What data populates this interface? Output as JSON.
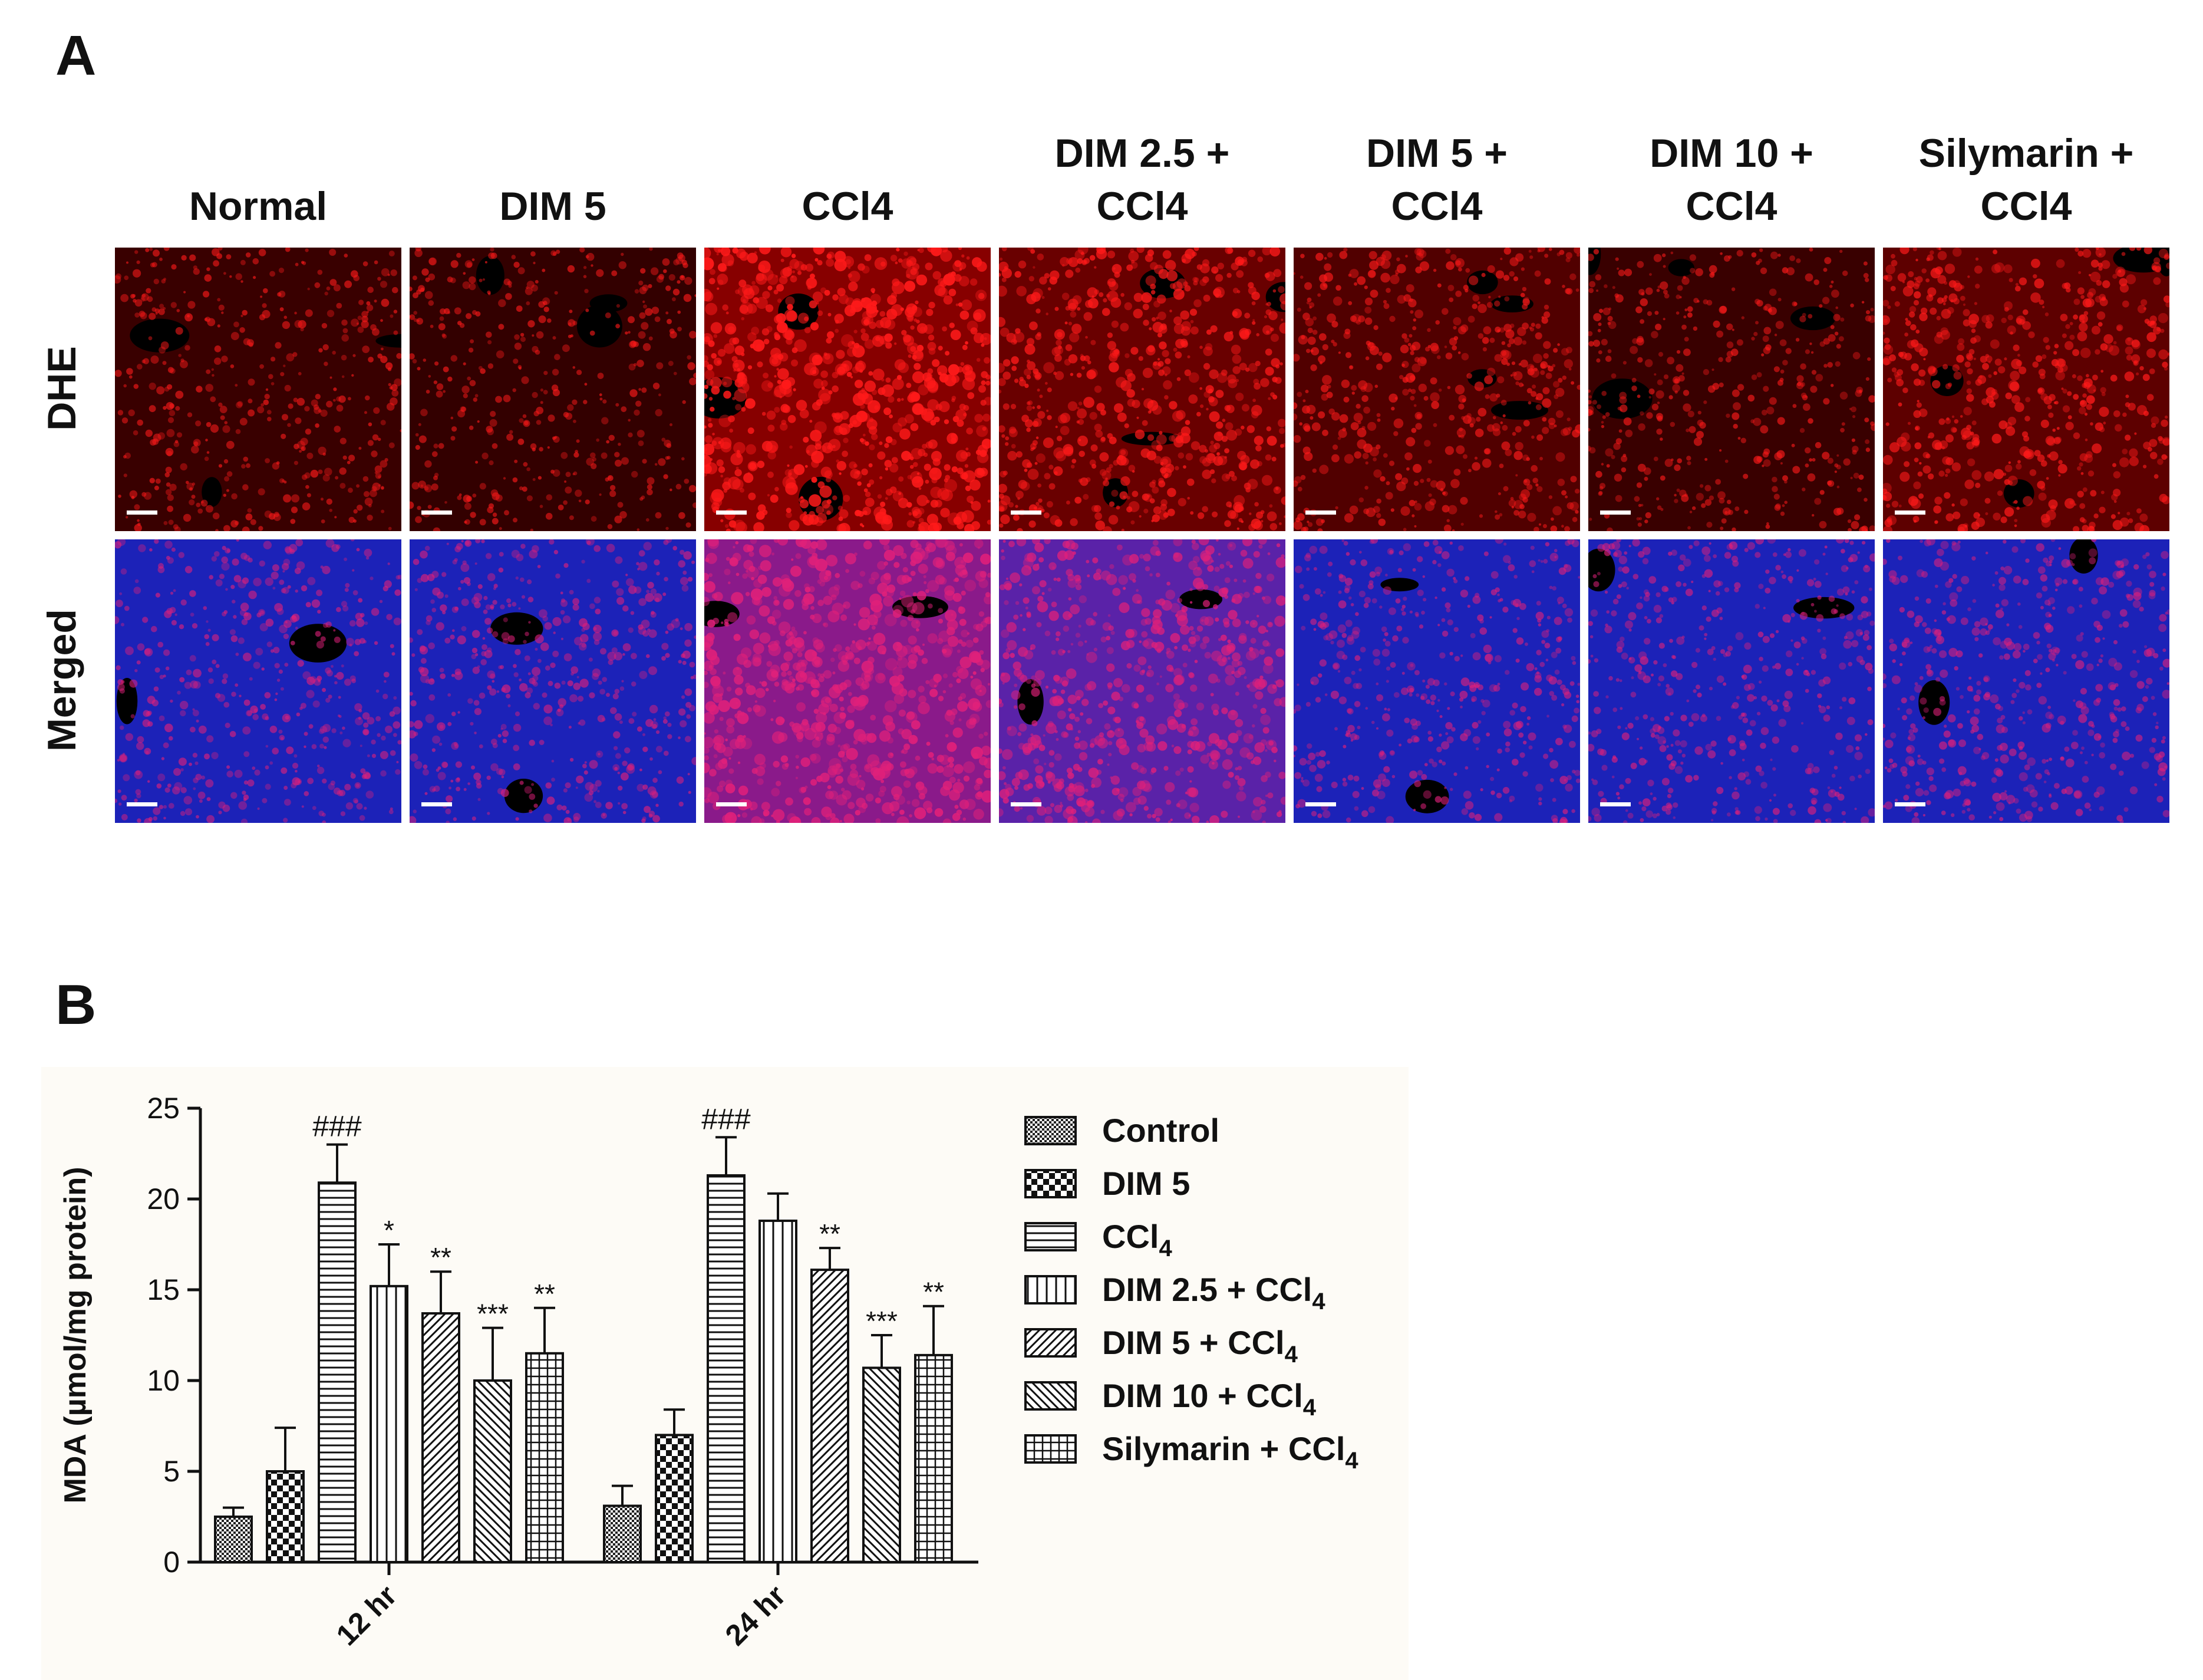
{
  "figure": {
    "panel_a_label": "A",
    "panel_b_label": "B",
    "columns": [
      "Normal",
      "DIM 5",
      "CCl4",
      "DIM 2.5 +\nCCl4",
      "DIM 5 +\nCCl4",
      "DIM 10  +\nCCl4",
      "Silymarin +\nCCl4"
    ],
    "rows": [
      "DHE",
      "Merged"
    ],
    "micrograph_intensity": {
      "DHE": [
        0.35,
        0.3,
        1.0,
        0.75,
        0.55,
        0.35,
        0.65
      ],
      "Merged": [
        0.4,
        0.45,
        0.95,
        0.75,
        0.4,
        0.4,
        0.45
      ]
    },
    "colors": {
      "dhe_red": "#ff1a1a",
      "nuclear_blue": "#1f2bff",
      "merged_magenta": "#e0207a",
      "scale_bar": "#ffffff"
    }
  },
  "chart_data": {
    "type": "bar",
    "categories": [
      "12 hr",
      "24 hr"
    ],
    "ylabel": "MDA (µmol/mg protein)",
    "ylim": [
      0,
      25
    ],
    "yticks": [
      0,
      5,
      10,
      15,
      20,
      25
    ],
    "series": [
      {
        "name": "Control",
        "values": [
          2.5,
          3.1
        ],
        "errors": [
          0.5,
          1.1
        ],
        "pattern": "dense-check",
        "annotations": [
          "",
          ""
        ]
      },
      {
        "name": "DIM 5",
        "values": [
          5.0,
          7.0
        ],
        "errors": [
          2.4,
          1.4
        ],
        "pattern": "checker",
        "annotations": [
          "",
          ""
        ]
      },
      {
        "name": "CCl4",
        "values": [
          20.9,
          21.3
        ],
        "errors": [
          2.1,
          2.1
        ],
        "pattern": "horizontal",
        "annotations": [
          "###",
          "###"
        ]
      },
      {
        "name": "DIM 2.5 + CCl4",
        "values": [
          15.2,
          18.8
        ],
        "errors": [
          2.3,
          1.5
        ],
        "pattern": "vertical",
        "annotations": [
          "*",
          ""
        ]
      },
      {
        "name": "DIM 5 + CCl4",
        "values": [
          13.7,
          16.1
        ],
        "errors": [
          2.3,
          1.2
        ],
        "pattern": "diag-up",
        "annotations": [
          "**",
          "**"
        ]
      },
      {
        "name": "DIM 10 + CCl4",
        "values": [
          10.0,
          10.7
        ],
        "errors": [
          2.9,
          1.8
        ],
        "pattern": "diag-down",
        "annotations": [
          "***",
          "***"
        ]
      },
      {
        "name": "Silymarin + CCl4",
        "values": [
          11.5,
          11.4
        ],
        "errors": [
          2.5,
          2.7
        ],
        "pattern": "grid",
        "annotations": [
          "**",
          "**"
        ]
      }
    ],
    "legend": {
      "placement": "right",
      "entries": [
        {
          "prefix": "Control",
          "sub": ""
        },
        {
          "prefix": "DIM 5",
          "sub": ""
        },
        {
          "prefix": "CCl",
          "sub": "4"
        },
        {
          "prefix": "DIM 2.5 + CCl",
          "sub": "4"
        },
        {
          "prefix": "DIM 5 + CCl",
          "sub": "4"
        },
        {
          "prefix": "DIM 10 + CCl",
          "sub": "4"
        },
        {
          "prefix": "Silymarin + CCl",
          "sub": "4"
        }
      ]
    },
    "grid": false
  }
}
